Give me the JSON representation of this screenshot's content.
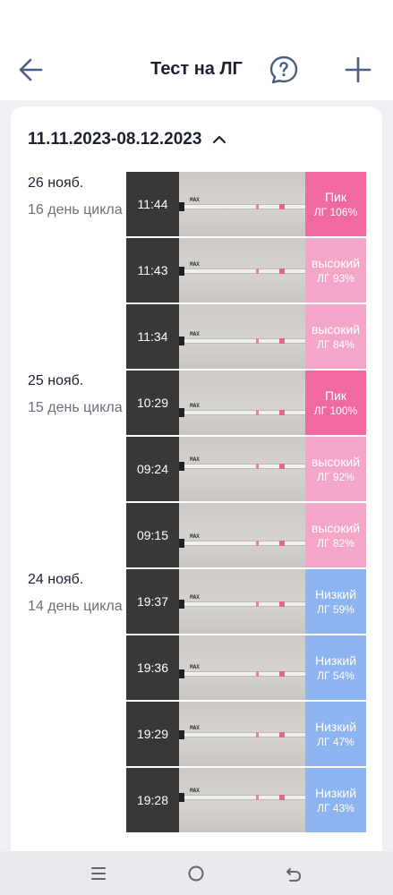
{
  "header": {
    "title": "Тест на ЛГ"
  },
  "period": {
    "range": "11.11.2023-08.12.2023"
  },
  "days": [
    {
      "date": "26 нояб.",
      "cycle": "16 день цикла"
    },
    {
      "date": "25 нояб.",
      "cycle": "15 день цикла"
    },
    {
      "date": "24 нояб.",
      "cycle": "14 день цикла"
    }
  ],
  "tests": [
    {
      "time": "11:44",
      "level": "Пик",
      "lh": "ЛГ 106%",
      "color": "#f06aa0"
    },
    {
      "time": "11:43",
      "level": "высокий",
      "lh": "ЛГ 93%",
      "color": "#f4a6c9"
    },
    {
      "time": "11:34",
      "level": "высокий",
      "lh": "ЛГ 84%",
      "color": "#f4a6c9"
    },
    {
      "time": "10:29",
      "level": "Пик",
      "lh": "ЛГ 100%",
      "color": "#f06aa0"
    },
    {
      "time": "09:24",
      "level": "высокий",
      "lh": "ЛГ 92%",
      "color": "#f4a6c9"
    },
    {
      "time": "09:15",
      "level": "высокий",
      "lh": "ЛГ 82%",
      "color": "#f4a6c9"
    },
    {
      "time": "19:37",
      "level": "Низкий",
      "lh": "ЛГ 59%",
      "color": "#8fb4f2"
    },
    {
      "time": "19:36",
      "level": "Низкий",
      "lh": "ЛГ 54%",
      "color": "#8fb4f2"
    },
    {
      "time": "19:29",
      "level": "Низкий",
      "lh": "ЛГ 47%",
      "color": "#8fb4f2"
    },
    {
      "time": "19:28",
      "level": "Низкий",
      "lh": "ЛГ 43%",
      "color": "#8fb4f2"
    }
  ],
  "strip_text": "MAX",
  "icons": {
    "back": "arrow-left-icon",
    "help": "question-bubble-icon",
    "add": "plus-icon",
    "collapse": "chevron-up-icon",
    "nav_recents": "menu-lines-icon",
    "nav_home": "circle-icon",
    "nav_back": "return-arrow-icon"
  },
  "colors": {
    "accent": "#4a5d82",
    "peak": "#f06aa0",
    "high": "#f4a6c9",
    "low": "#8fb4f2"
  }
}
